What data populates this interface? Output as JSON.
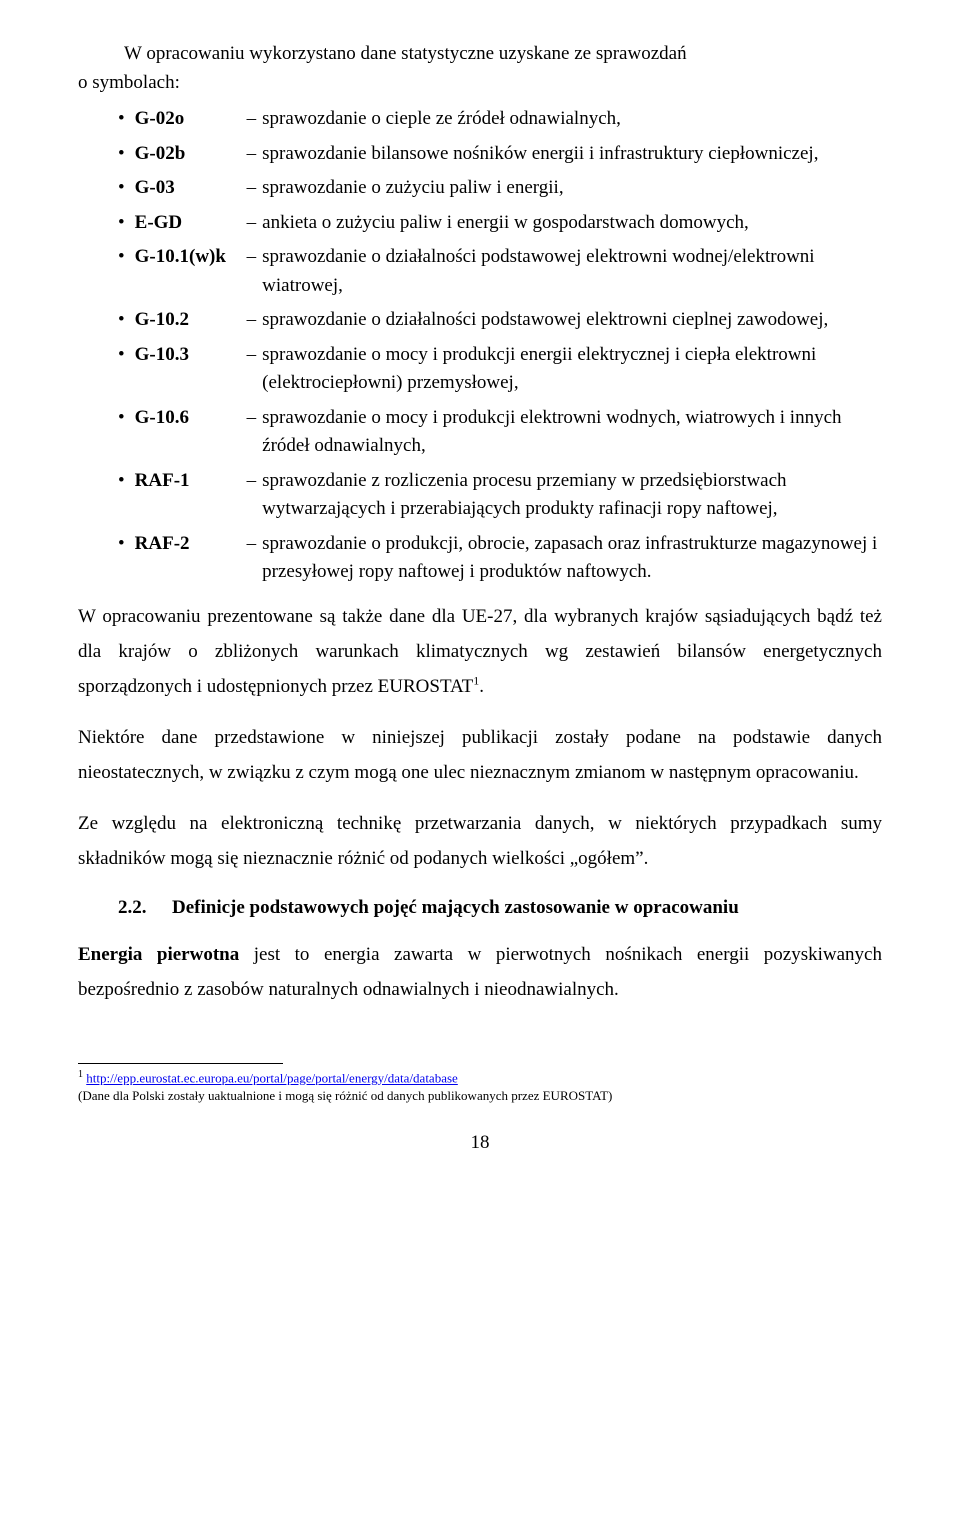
{
  "intro": {
    "line1": "W opracowaniu wykorzystano dane statystyczne uzyskane ze sprawozdań",
    "line2": "o symbolach:"
  },
  "defs": [
    {
      "code": "G-02o",
      "desc": "sprawozdanie o cieple ze źródeł odnawialnych,"
    },
    {
      "code": "G-02b",
      "desc": "sprawozdanie bilansowe nośników energii i infrastruktury ciepłowniczej,"
    },
    {
      "code": "G-03",
      "desc": "sprawozdanie o zużyciu paliw i energii,"
    },
    {
      "code": "E-GD",
      "desc": "ankieta o zużyciu paliw i energii w gospodarstwach domowych,"
    },
    {
      "code": "G-10.1(w)k",
      "desc": "sprawozdanie o działalności podstawowej elektrowni wodnej/elektrowni wiatrowej,"
    },
    {
      "code": "G-10.2",
      "desc": "sprawozdanie o działalności podstawowej elektrowni cieplnej zawodowej,"
    },
    {
      "code": "G-10.3",
      "desc": "sprawozdanie o mocy i produkcji energii elektrycznej i ciepła elektrowni (elektrociepłowni) przemysłowej,"
    },
    {
      "code": "G-10.6",
      "desc": "sprawozdanie o mocy i produkcji elektrowni wodnych, wiatrowych i innych źródeł odnawialnych,"
    },
    {
      "code": "RAF-1",
      "desc": "sprawozdanie z rozliczenia procesu przemiany w przedsiębiorstwach wytwarzających i przerabiających produkty rafinacji ropy naftowej,"
    },
    {
      "code": "RAF-2",
      "desc": "sprawozdanie o produkcji, obrocie, zapasach oraz infrastrukturze magazynowej i przesyłowej ropy naftowej i produktów naftowych."
    }
  ],
  "para1_a": "W opracowaniu prezentowane są także dane dla UE-27, dla wybranych krajów sąsiadujących bądź też dla krajów o zbliżonych warunkach klimatycznych wg zestawień bilansów energetycznych sporządzonych i udostępnionych przez EUROSTAT",
  "para1_b": ".",
  "para2": "Niektóre dane przedstawione w niniejszej publikacji zostały podane na podstawie danych nieostatecznych, w związku z czym mogą one ulec nieznacznym zmianom w następnym opracowaniu.",
  "para3": "Ze względu na elektroniczną technikę przetwarzania danych, w niektórych przypadkach sumy składników mogą się nieznacznie różnić od podanych wielkości „ogółem”.",
  "section": {
    "num": "2.2.",
    "title": "Definicje podstawowych pojęć mających zastosowanie w opracowaniu"
  },
  "para4_bold": "Energia pierwotna",
  "para4_rest": " jest to energia zawarta w pierwotnych nośnikach energii pozyskiwanych bezpośrednio z zasobów naturalnych odnawialnych i nieodnawialnych.",
  "footnote": {
    "marker": "1",
    "link_text": "http://epp.eurostat.ec.europa.eu/portal/page/portal/energy/data/database",
    "note": "(Dane dla Polski zostały uaktualnione i mogą się różnić od danych publikowanych przez EUROSTAT)"
  },
  "pagenum": "18"
}
